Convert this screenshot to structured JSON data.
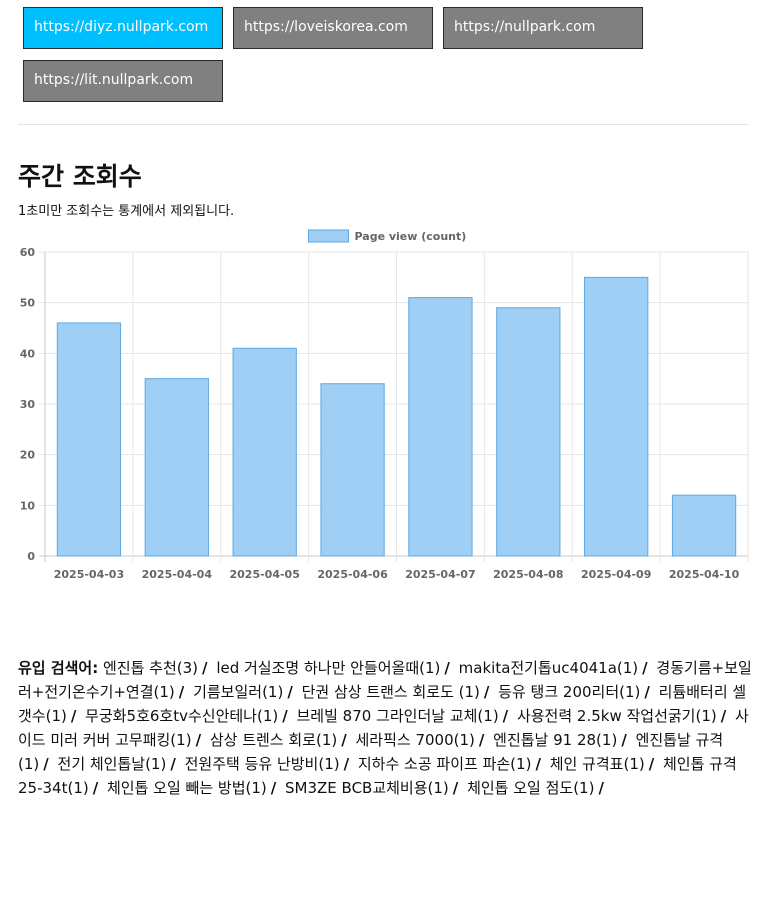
{
  "sites": [
    {
      "label": "https://diyz.nullpark.com",
      "active": true
    },
    {
      "label": "https://loveiskorea.com",
      "active": false
    },
    {
      "label": "https://nullpark.com",
      "active": false
    },
    {
      "label": "https://lit.nullpark.com",
      "active": false
    }
  ],
  "section": {
    "title": "주간 조회수",
    "subtitle": "1초미만 조회수는 통계에서 제외됩니다."
  },
  "chart_data": {
    "type": "bar",
    "categories": [
      "2025-04-03",
      "2025-04-04",
      "2025-04-05",
      "2025-04-06",
      "2025-04-07",
      "2025-04-08",
      "2025-04-09",
      "2025-04-10"
    ],
    "series": [
      {
        "name": "Page view (count)",
        "values": [
          46,
          35,
          41,
          34,
          51,
          49,
          55,
          12
        ]
      }
    ],
    "ylim": [
      0,
      60
    ],
    "yticks": [
      0,
      10,
      20,
      30,
      40,
      50,
      60
    ],
    "grid": true,
    "legend": "top-center",
    "colors": {
      "fill": "#9fcff4",
      "stroke": "#5fa8e0"
    }
  },
  "keywords": {
    "label": "유입 검색어:",
    "separator": "/",
    "items": [
      "엔진톱 추천(3)",
      "led 거실조명 하나만 안들어올때(1)",
      "makita전기톱uc4041a(1)",
      "경동기름+보일러+전기온수기+연결(1)",
      "기름보일러(1)",
      "단권 삼상 트랜스 회로도 (1)",
      "등유 탱크 200리터(1)",
      "리튬배터리 셀 갯수(1)",
      "무궁화5호6호tv수신안테나(1)",
      "브레빌 870 그라인더날 교체(1)",
      "사용전력 2.5kw 작업선굵기(1)",
      "사이드 미러 커버 고무패킹(1)",
      "삼상 트렌스 회로(1)",
      "세라픽스 7000(1)",
      "엔진톱날 91 28(1)",
      "엔진톱날 규격(1)",
      "전기 체인톱날(1)",
      "전원주택 등유 난방비(1)",
      "지하수 소공 파이프 파손(1)",
      "체인 규격표(1)",
      "체인톱 규격 25-34t(1)",
      "체인톱 오일 빼는 방법(1)",
      "SM3ZE BCB교체비용(1)",
      "체인톱 오일 점도(1)"
    ]
  }
}
